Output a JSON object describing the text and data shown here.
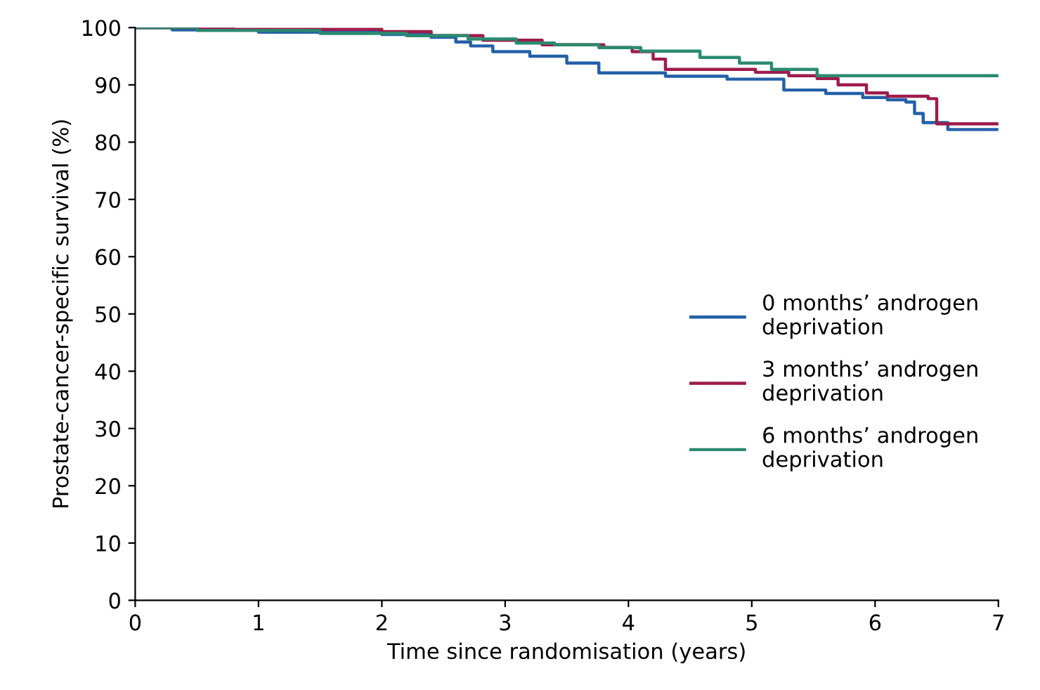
{
  "chart_data": {
    "type": "step",
    "xlabel": "Time since randomisation (years)",
    "ylabel": "Prostate-cancer-specific survival (%)",
    "xlim": [
      0,
      7
    ],
    "xticks": [
      0,
      1,
      2,
      3,
      4,
      5,
      6,
      7
    ],
    "ylim": [
      0,
      100
    ],
    "yticks": [
      0,
      10,
      20,
      30,
      40,
      50,
      60,
      70,
      80,
      90,
      100
    ],
    "grid": false,
    "legend": "right",
    "marker": "none",
    "line_style": "solid",
    "series": [
      {
        "name": "0 months’ androgen\ndeprivation",
        "color": "#2460a8",
        "x": [
          0,
          0.3,
          1.0,
          2.0,
          2.4,
          2.6,
          2.72,
          2.9,
          3.2,
          3.5,
          3.76,
          4.3,
          4.8,
          5.26,
          5.6,
          5.9,
          6.1,
          6.25,
          6.32,
          6.39,
          6.59,
          7
        ],
        "values": [
          100,
          99.6,
          99.2,
          98.8,
          98.3,
          97.5,
          96.8,
          95.8,
          95.0,
          93.8,
          92.1,
          91.5,
          91.0,
          89.1,
          88.5,
          87.8,
          87.4,
          87.0,
          85.0,
          83.4,
          82.2,
          82.2
        ]
      },
      {
        "name": "3 months’ androgen\ndeprivation",
        "color": "#9e1c4c",
        "x": [
          0,
          0.8,
          2.0,
          2.4,
          2.82,
          3.3,
          3.8,
          4.03,
          4.2,
          4.3,
          5.03,
          5.3,
          5.53,
          5.7,
          5.93,
          6.1,
          6.43,
          6.5,
          7
        ],
        "values": [
          100,
          99.7,
          99.3,
          98.6,
          97.8,
          97.0,
          96.5,
          95.8,
          94.5,
          92.7,
          92.2,
          91.6,
          91.1,
          90.0,
          88.6,
          88.0,
          87.6,
          83.2,
          83.2
        ]
      },
      {
        "name": "6 months’ androgen\ndeprivation",
        "color": "#2a8a70",
        "x": [
          0,
          0.5,
          1.5,
          2.2,
          2.7,
          3.09,
          3.4,
          3.76,
          4.1,
          4.58,
          4.9,
          5.16,
          5.53,
          7
        ],
        "values": [
          100,
          99.5,
          99.0,
          98.6,
          98.0,
          97.3,
          97.0,
          96.5,
          95.9,
          94.8,
          93.8,
          92.7,
          91.6,
          91.6
        ]
      }
    ]
  }
}
